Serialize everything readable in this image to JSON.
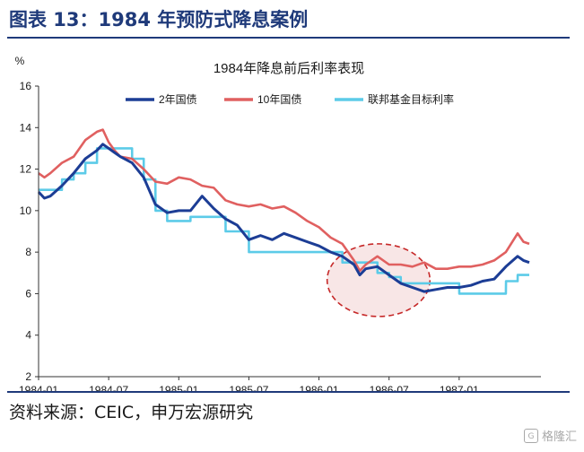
{
  "header": {
    "figure_title": "图表 13：1984 年预防式降息案例"
  },
  "footer": {
    "source": "资料来源：CEIC，申万宏源研究",
    "watermark": "格隆汇"
  },
  "chart_data": {
    "type": "line",
    "title": "1984年降息前后利率表现",
    "ylabel": "%",
    "xlabel": "",
    "ylim": [
      2,
      16
    ],
    "yticks": [
      2,
      4,
      6,
      8,
      10,
      12,
      14,
      16
    ],
    "x_tick_labels": [
      "1984-01",
      "1984-07",
      "1985-01",
      "1985-07",
      "1986-01",
      "1986-07",
      "1987-01"
    ],
    "x_tick_months": [
      0,
      6,
      12,
      18,
      24,
      30,
      36
    ],
    "x_range_months": [
      0,
      43
    ],
    "grid": false,
    "legend_position": "top",
    "series": [
      {
        "name": "2年国债",
        "color": "#1c3d95",
        "x_months": [
          0,
          0.5,
          1,
          2,
          3,
          4,
          5,
          5.5,
          6,
          6.5,
          7,
          8,
          9,
          10,
          11,
          12,
          13,
          14,
          15,
          16,
          17,
          18,
          19,
          20,
          21,
          22,
          23,
          24,
          25,
          26,
          27,
          27.5,
          28,
          29,
          30,
          31,
          32,
          33,
          34,
          35,
          36,
          37,
          38,
          39,
          40,
          41,
          41.5,
          42
        ],
        "values": [
          10.9,
          10.6,
          10.7,
          11.2,
          11.8,
          12.5,
          12.9,
          13.2,
          13.0,
          12.8,
          12.6,
          12.3,
          11.6,
          10.3,
          9.9,
          10.0,
          10.0,
          10.7,
          10.1,
          9.6,
          9.3,
          8.6,
          8.8,
          8.6,
          8.9,
          8.7,
          8.5,
          8.3,
          8.0,
          7.8,
          7.4,
          6.9,
          7.2,
          7.3,
          6.9,
          6.5,
          6.3,
          6.1,
          6.2,
          6.3,
          6.3,
          6.4,
          6.6,
          6.7,
          7.3,
          7.8,
          7.6,
          7.5
        ]
      },
      {
        "name": "10年国债",
        "color": "#e06060",
        "x_months": [
          0,
          0.5,
          1,
          2,
          3,
          4,
          5,
          5.5,
          6,
          6.5,
          7,
          8,
          9,
          10,
          11,
          12,
          13,
          14,
          15,
          16,
          17,
          18,
          19,
          20,
          21,
          22,
          23,
          24,
          25,
          26,
          27,
          27.5,
          28,
          29,
          30,
          31,
          32,
          33,
          34,
          35,
          36,
          37,
          38,
          39,
          40,
          41,
          41.5,
          42
        ],
        "values": [
          11.8,
          11.6,
          11.8,
          12.3,
          12.6,
          13.4,
          13.8,
          13.9,
          13.3,
          12.9,
          12.6,
          12.5,
          12.0,
          11.4,
          11.3,
          11.6,
          11.5,
          11.2,
          11.1,
          10.5,
          10.3,
          10.2,
          10.3,
          10.1,
          10.2,
          9.9,
          9.5,
          9.2,
          8.7,
          8.4,
          7.6,
          7.1,
          7.4,
          7.8,
          7.4,
          7.4,
          7.3,
          7.5,
          7.2,
          7.2,
          7.3,
          7.3,
          7.4,
          7.6,
          8.0,
          8.9,
          8.5,
          8.4
        ]
      },
      {
        "name": "联邦基金目标利率",
        "color": "#5ccbe8",
        "x_months": [
          0,
          2,
          2.01,
          3,
          3.01,
          4,
          4.01,
          5,
          5.01,
          8,
          8.01,
          9,
          9.01,
          10,
          10.01,
          11,
          11.01,
          13,
          13.01,
          16,
          16.01,
          18,
          18.01,
          26,
          26.01,
          29,
          29.01,
          30,
          30.01,
          31,
          31.01,
          36,
          36.01,
          40,
          40.01,
          41,
          41.01,
          42
        ],
        "values": [
          11.0,
          11.0,
          11.5,
          11.5,
          11.8,
          11.8,
          12.3,
          12.3,
          13.0,
          13.0,
          12.5,
          12.5,
          11.5,
          11.5,
          10.0,
          10.0,
          9.5,
          9.5,
          9.7,
          9.7,
          9.0,
          9.0,
          8.0,
          8.0,
          7.5,
          7.5,
          7.0,
          7.0,
          6.8,
          6.8,
          6.5,
          6.5,
          6.0,
          6.0,
          6.6,
          6.6,
          6.9,
          6.9
        ]
      }
    ],
    "annotation": {
      "shape": "dashed-ellipse",
      "color": "#c62828",
      "fill": "#f6dede",
      "center_month": 29.1,
      "center_value": 6.65,
      "radius_months": 4.4,
      "radius_value": 1.75
    },
    "axis_colors": {
      "tick_text": "#1a1a1a"
    }
  }
}
